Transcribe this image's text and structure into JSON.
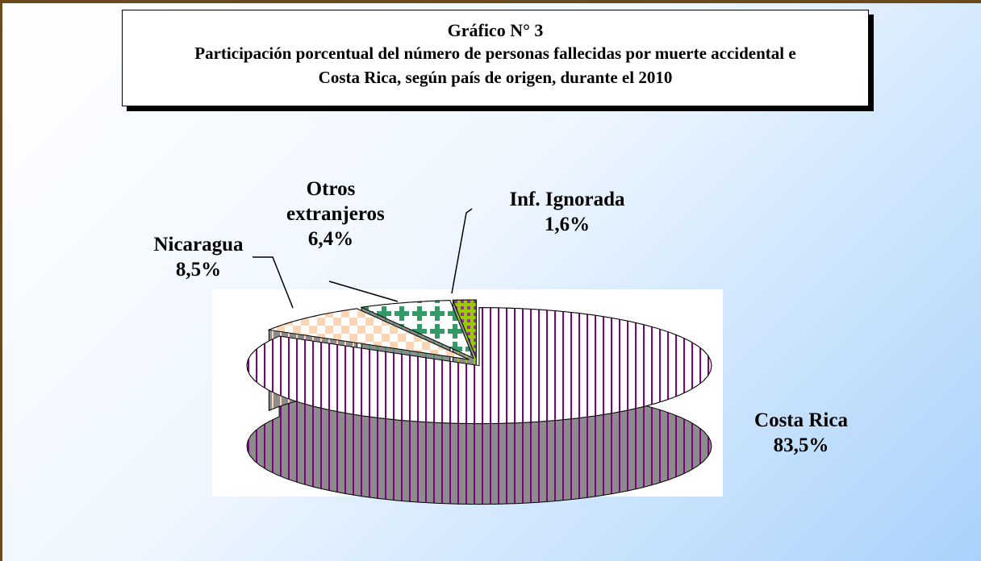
{
  "chart_data": {
    "type": "pie",
    "title": "Gráfico N° 3",
    "subtitle": [
      "Participación porcentual del número de personas fallecidas por muerte accidental e",
      "Costa Rica, según país de origen, durante el 2010"
    ],
    "categories": [
      "Costa Rica",
      "Nicaragua",
      "Otros extranjeros",
      "Inf. Ignorada"
    ],
    "values": [
      83.5,
      8.5,
      6.4,
      1.6
    ],
    "value_labels": [
      "83,5%",
      "8,5%",
      "6,4%",
      "1,6%"
    ],
    "colors": [
      "#800080",
      "#fcd5b4",
      "#339966",
      "#99cc00"
    ]
  }
}
